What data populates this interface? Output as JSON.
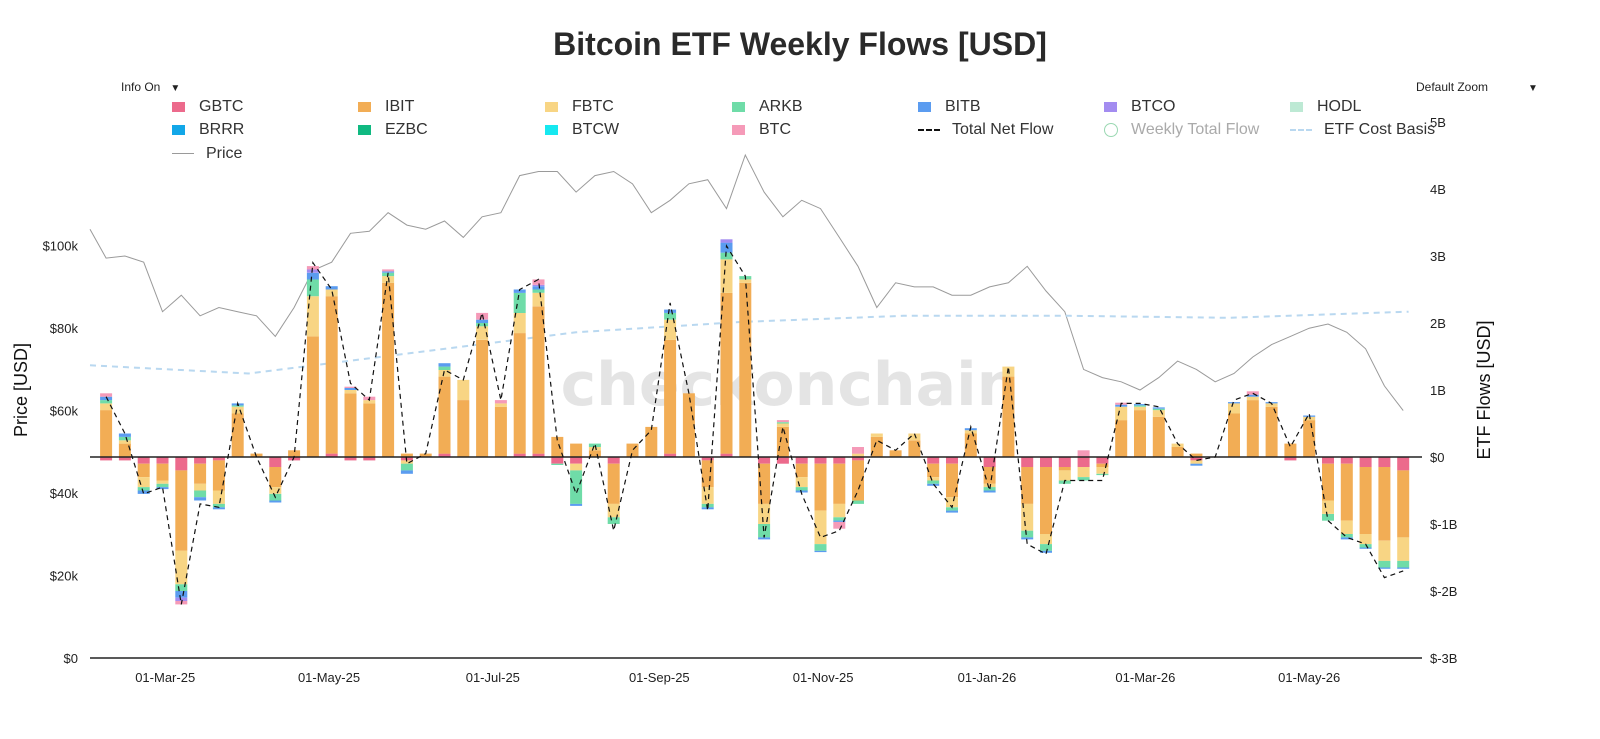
{
  "title": "Bitcoin ETF Weekly Flows [USD]",
  "controls": {
    "info": "Info On",
    "zoom": "Default Zoom"
  },
  "watermark": "checkonchain",
  "legend": [
    {
      "name": "GBTC",
      "color": "#ec6a8c",
      "kind": "bar"
    },
    {
      "name": "IBIT",
      "color": "#f2ad55",
      "kind": "bar"
    },
    {
      "name": "FBTC",
      "color": "#f8d584",
      "kind": "bar"
    },
    {
      "name": "ARKB",
      "color": "#6fdca8",
      "kind": "bar"
    },
    {
      "name": "BITB",
      "color": "#5b9cf0",
      "kind": "bar"
    },
    {
      "name": "BTCO",
      "color": "#a38cf0",
      "kind": "bar"
    },
    {
      "name": "HODL",
      "color": "#bde9d4",
      "kind": "bar"
    },
    {
      "name": "BRRR",
      "color": "#12a7e8",
      "kind": "bar"
    },
    {
      "name": "EZBC",
      "color": "#10b981",
      "kind": "bar"
    },
    {
      "name": "BTCW",
      "color": "#16e8f0",
      "kind": "bar"
    },
    {
      "name": "BTC",
      "color": "#f59ab8",
      "kind": "bar"
    },
    {
      "name": "Total Net Flow",
      "color": "#111111",
      "kind": "dash"
    },
    {
      "name": "Weekly Total Flow",
      "color": "#9ad8b2",
      "kind": "circle",
      "dim": true
    },
    {
      "name": "ETF Cost Basis",
      "color": "#b9d8f0",
      "kind": "lightdash"
    },
    {
      "name": "Price",
      "color": "#9a9a9a",
      "kind": "line"
    }
  ],
  "chart_data": {
    "type": "bar",
    "stacked": true,
    "title": "Bitcoin ETF Weekly Flows [USD]",
    "y_left": {
      "label": "Price [USD]",
      "range": [
        0,
        130000
      ],
      "ticks": [
        "$0",
        "$20k",
        "$40k",
        "$60k",
        "$80k",
        "$100k"
      ]
    },
    "y_right": {
      "label": "ETF Flows [USD]",
      "range": [
        -3,
        5
      ],
      "unit": "B",
      "ticks": [
        "$-3B",
        "$-2B",
        "$-1B",
        "$0",
        "1B",
        "2B",
        "3B",
        "4B",
        "5B"
      ]
    },
    "x_ticks": [
      "01-Mar-25",
      "01-May-25",
      "01-Jul-25",
      "01-Sep-25",
      "01-Nov-25",
      "01-Jan-26",
      "01-Mar-26",
      "01-May-26"
    ],
    "weeks": [
      "2025-02-07",
      "2025-02-14",
      "2025-02-21",
      "2025-02-28",
      "2025-03-07",
      "2025-03-14",
      "2025-03-21",
      "2025-03-28",
      "2025-04-04",
      "2025-04-11",
      "2025-04-18",
      "2025-04-25",
      "2025-05-02",
      "2025-05-09",
      "2025-05-16",
      "2025-05-23",
      "2025-05-30",
      "2025-06-06",
      "2025-06-13",
      "2025-06-20",
      "2025-06-27",
      "2025-07-04",
      "2025-07-11",
      "2025-07-18",
      "2025-07-25",
      "2025-08-01",
      "2025-08-08",
      "2025-08-15",
      "2025-08-22",
      "2025-08-29",
      "2025-09-05",
      "2025-09-12",
      "2025-09-19",
      "2025-09-26",
      "2025-10-03",
      "2025-10-10",
      "2025-10-17",
      "2025-10-24",
      "2025-10-31",
      "2025-11-07",
      "2025-11-14",
      "2025-11-21",
      "2025-11-28",
      "2025-12-05",
      "2025-12-12",
      "2025-12-19",
      "2025-12-26",
      "2026-01-02",
      "2026-01-09",
      "2026-01-16",
      "2026-01-23",
      "2026-01-30",
      "2026-02-06",
      "2026-02-13",
      "2026-02-20",
      "2026-02-27",
      "2026-03-06",
      "2026-03-13",
      "2026-03-20",
      "2026-03-27",
      "2026-04-03",
      "2026-04-10",
      "2026-04-17",
      "2026-04-24",
      "2026-05-01",
      "2026-05-08",
      "2026-05-15",
      "2026-05-22",
      "2026-05-29",
      "2026-06-05"
    ],
    "net_flow_B": [
      0.9,
      0.35,
      -0.55,
      -0.45,
      -2.2,
      -0.7,
      -0.75,
      0.8,
      0,
      -0.6,
      0,
      2.9,
      2.5,
      1.1,
      0.85,
      2.75,
      -0.1,
      0.05,
      1.3,
      1.15,
      2.15,
      0.85,
      2.5,
      2.65,
      0.25,
      -0.55,
      0.2,
      -1.1,
      0.1,
      0.4,
      2.3,
      0.95,
      -0.8,
      3.15,
      2.7,
      -1.2,
      0.45,
      -0.55,
      -1.2,
      -1.1,
      -0.5,
      0.25,
      0.1,
      0.35,
      -0.4,
      -0.75,
      0.45,
      -0.5,
      1.35,
      -1.3,
      -1.45,
      -0.35,
      -0.35,
      -0.35,
      0.8,
      0.8,
      0.75,
      0.2,
      -0.05,
      0,
      0.85,
      0.95,
      0.8,
      0.15,
      0.65,
      -0.95,
      -1.2,
      -1.3,
      -1.8,
      -1.7
    ],
    "series": [
      {
        "name": "GBTC",
        "values": [
          -0.05,
          -0.05,
          -0.1,
          -0.1,
          -0.2,
          -0.1,
          -0.05,
          0,
          0,
          -0.15,
          -0.05,
          0,
          0.05,
          -0.05,
          -0.05,
          0,
          -0.05,
          0,
          0.05,
          0,
          0,
          0,
          0.05,
          0.05,
          -0.1,
          -0.1,
          0,
          -0.1,
          0,
          0,
          0.05,
          0,
          -0.05,
          0.05,
          0,
          -0.1,
          -0.1,
          -0.1,
          -0.1,
          -0.1,
          -0.05,
          0,
          0,
          0,
          -0.1,
          -0.1,
          0,
          -0.15,
          0,
          -0.15,
          -0.15,
          -0.15,
          -0.15,
          -0.1,
          0,
          0,
          0,
          0,
          -0.05,
          0,
          0,
          0,
          0,
          -0.05,
          0,
          -0.1,
          -0.1,
          -0.15,
          -0.15,
          -0.2
        ]
      },
      {
        "name": "IBIT",
        "values": [
          0.7,
          0.2,
          -0.2,
          -0.25,
          -1.2,
          -0.3,
          -0.45,
          0.65,
          0.05,
          -0.3,
          0.1,
          1.8,
          2.35,
          0.95,
          0.8,
          2.6,
          0.05,
          0.05,
          1.15,
          0.85,
          1.75,
          0.75,
          1.8,
          2.2,
          0.3,
          0.2,
          0.1,
          -0.6,
          0.2,
          0.45,
          1.7,
          0.95,
          -0.4,
          2.4,
          2.6,
          -0.6,
          0.45,
          -0.2,
          -0.7,
          -0.6,
          -0.6,
          0.3,
          0.1,
          0.25,
          -0.2,
          -0.5,
          0.35,
          -0.25,
          1.2,
          -0.55,
          -1.0,
          -0.05,
          0,
          -0.05,
          0.55,
          0.7,
          0.6,
          0.15,
          0.05,
          0,
          0.65,
          0.85,
          0.75,
          0.2,
          0.55,
          -0.55,
          -0.85,
          -1.0,
          -1.1,
          -1.0
        ]
      },
      {
        "name": "FBTC",
        "values": [
          0.1,
          0.05,
          -0.15,
          -0.05,
          -0.5,
          -0.1,
          -0.2,
          0.1,
          0,
          -0.1,
          0,
          0.6,
          0.1,
          0.05,
          0.05,
          0.1,
          -0.05,
          0,
          0.1,
          0.3,
          0.2,
          0.05,
          0.3,
          0.2,
          0,
          -0.1,
          0.05,
          -0.2,
          0,
          0,
          0.3,
          0,
          -0.25,
          0.5,
          0.05,
          -0.3,
          0.05,
          -0.15,
          -0.5,
          -0.2,
          0.05,
          0.05,
          0,
          0.1,
          -0.05,
          -0.15,
          0.05,
          -0.05,
          0.15,
          -0.4,
          -0.15,
          -0.15,
          -0.15,
          -0.1,
          0.2,
          0.05,
          0.1,
          0.05,
          -0.05,
          0,
          0.15,
          0.05,
          0.05,
          0,
          0.05,
          -0.2,
          -0.2,
          -0.15,
          -0.3,
          -0.35
        ]
      },
      {
        "name": "ARKB",
        "values": [
          0.05,
          0.05,
          -0.05,
          -0.05,
          -0.1,
          -0.1,
          -0.05,
          0.02,
          0,
          -0.1,
          0,
          0.25,
          0,
          0,
          0,
          0.05,
          -0.1,
          0,
          0.05,
          0,
          0.05,
          0,
          0.3,
          0.05,
          -0.02,
          -0.5,
          0.05,
          -0.1,
          0,
          0,
          0.1,
          0,
          -0.05,
          0.1,
          0.05,
          -0.2,
          0.02,
          -0.05,
          -0.1,
          -0.05,
          -0.05,
          0,
          0,
          0,
          -0.05,
          -0.05,
          0,
          -0.05,
          0,
          -0.1,
          -0.1,
          -0.05,
          -0.05,
          -0.02,
          0,
          0.02,
          0.02,
          0,
          0,
          0,
          0,
          0,
          0,
          0,
          0,
          -0.1,
          -0.05,
          -0.05,
          -0.1,
          -0.1
        ]
      },
      {
        "name": "BITB",
        "values": [
          0.05,
          0.05,
          -0.05,
          -0.03,
          -0.1,
          -0.05,
          -0.03,
          0.03,
          0,
          -0.03,
          0,
          0.1,
          0.05,
          0.03,
          0,
          0.02,
          -0.05,
          0,
          0.05,
          0,
          0.05,
          0,
          0.05,
          0.05,
          0,
          -0.03,
          0,
          0,
          0,
          0,
          0.05,
          0,
          -0.03,
          0.15,
          0,
          -0.03,
          0,
          -0.03,
          -0.02,
          -0.02,
          0,
          0,
          0,
          0,
          -0.03,
          -0.03,
          0.03,
          -0.03,
          0,
          -0.03,
          -0.03,
          0,
          0,
          0,
          0.03,
          0.02,
          0.02,
          0,
          -0.03,
          0,
          0.02,
          0.03,
          0.02,
          0,
          0.02,
          0,
          -0.03,
          -0.02,
          -0.02,
          -0.02
        ]
      },
      {
        "name": "BTCO",
        "values": [
          0,
          0,
          0,
          0,
          -0.05,
          0,
          0,
          0,
          0,
          0,
          0,
          0.05,
          0,
          0,
          0,
          0,
          0,
          0,
          0,
          0,
          0,
          0,
          0,
          0.02,
          0,
          0,
          0,
          0,
          0,
          0,
          0,
          0,
          0,
          0.05,
          0,
          0,
          0,
          0,
          0,
          0,
          0,
          0,
          0,
          0,
          0,
          0,
          0,
          0,
          0,
          0,
          0,
          0,
          0,
          0,
          0,
          0,
          0,
          0,
          0,
          0,
          0,
          0,
          0,
          0,
          0,
          0,
          0,
          0,
          0,
          0
        ]
      },
      {
        "name": "BTC",
        "values": [
          0.05,
          0,
          0,
          0,
          -0.05,
          0,
          0,
          0,
          0,
          0,
          0,
          0.05,
          0,
          0.02,
          0.05,
          0.03,
          0,
          0,
          0,
          0,
          0.1,
          0.05,
          0,
          0.08,
          0,
          0,
          0,
          0,
          0,
          0,
          0,
          0,
          0,
          0,
          0,
          0,
          0.03,
          0,
          0,
          -0.1,
          0.1,
          0,
          0,
          0,
          0,
          0,
          0,
          0,
          0,
          0,
          0,
          0,
          0.1,
          0,
          0.03,
          0,
          0,
          0,
          0,
          0,
          0,
          0.05,
          0,
          0,
          0,
          0,
          0,
          0,
          0,
          0
        ]
      }
    ],
    "price": [
      {
        "date": "2025-02-01",
        "v": 104000
      },
      {
        "date": "2025-02-07",
        "v": 97000
      },
      {
        "date": "2025-02-14",
        "v": 97500
      },
      {
        "date": "2025-02-21",
        "v": 96000
      },
      {
        "date": "2025-02-28",
        "v": 84000
      },
      {
        "date": "2025-03-07",
        "v": 88000
      },
      {
        "date": "2025-03-14",
        "v": 83000
      },
      {
        "date": "2025-03-21",
        "v": 85000
      },
      {
        "date": "2025-03-28",
        "v": 84000
      },
      {
        "date": "2025-04-04",
        "v": 83000
      },
      {
        "date": "2025-04-11",
        "v": 78000
      },
      {
        "date": "2025-04-18",
        "v": 85000
      },
      {
        "date": "2025-04-25",
        "v": 94000
      },
      {
        "date": "2025-05-02",
        "v": 96000
      },
      {
        "date": "2025-05-09",
        "v": 103000
      },
      {
        "date": "2025-05-16",
        "v": 103500
      },
      {
        "date": "2025-05-23",
        "v": 108000
      },
      {
        "date": "2025-05-30",
        "v": 105000
      },
      {
        "date": "2025-06-06",
        "v": 104000
      },
      {
        "date": "2025-06-13",
        "v": 106000
      },
      {
        "date": "2025-06-20",
        "v": 102000
      },
      {
        "date": "2025-06-27",
        "v": 107000
      },
      {
        "date": "2025-07-04",
        "v": 108000
      },
      {
        "date": "2025-07-11",
        "v": 117000
      },
      {
        "date": "2025-07-18",
        "v": 118000
      },
      {
        "date": "2025-07-25",
        "v": 118000
      },
      {
        "date": "2025-08-01",
        "v": 113000
      },
      {
        "date": "2025-08-08",
        "v": 117000
      },
      {
        "date": "2025-08-15",
        "v": 118000
      },
      {
        "date": "2025-08-22",
        "v": 115000
      },
      {
        "date": "2025-08-29",
        "v": 108000
      },
      {
        "date": "2025-09-05",
        "v": 111000
      },
      {
        "date": "2025-09-12",
        "v": 115000
      },
      {
        "date": "2025-09-19",
        "v": 116000
      },
      {
        "date": "2025-09-26",
        "v": 109000
      },
      {
        "date": "2025-10-03",
        "v": 122000
      },
      {
        "date": "2025-10-10",
        "v": 113000
      },
      {
        "date": "2025-10-17",
        "v": 107000
      },
      {
        "date": "2025-10-24",
        "v": 111000
      },
      {
        "date": "2025-10-31",
        "v": 109000
      },
      {
        "date": "2025-11-07",
        "v": 102000
      },
      {
        "date": "2025-11-14",
        "v": 95000
      },
      {
        "date": "2025-11-21",
        "v": 85000
      },
      {
        "date": "2025-11-28",
        "v": 91000
      },
      {
        "date": "2025-12-05",
        "v": 90000
      },
      {
        "date": "2025-12-12",
        "v": 90000
      },
      {
        "date": "2025-12-19",
        "v": 88000
      },
      {
        "date": "2025-12-26",
        "v": 88000
      },
      {
        "date": "2026-01-02",
        "v": 90000
      },
      {
        "date": "2026-01-09",
        "v": 91000
      },
      {
        "date": "2026-01-16",
        "v": 95000
      },
      {
        "date": "2026-01-23",
        "v": 89000
      },
      {
        "date": "2026-01-30",
        "v": 84000
      },
      {
        "date": "2026-02-06",
        "v": 70000
      },
      {
        "date": "2026-02-13",
        "v": 68000
      },
      {
        "date": "2026-02-20",
        "v": 67000
      },
      {
        "date": "2026-02-27",
        "v": 65000
      },
      {
        "date": "2026-03-06",
        "v": 68000
      },
      {
        "date": "2026-03-13",
        "v": 72000
      },
      {
        "date": "2026-03-20",
        "v": 70000
      },
      {
        "date": "2026-03-27",
        "v": 67000
      },
      {
        "date": "2026-04-03",
        "v": 69000
      },
      {
        "date": "2026-04-10",
        "v": 73000
      },
      {
        "date": "2026-04-17",
        "v": 76000
      },
      {
        "date": "2026-04-24",
        "v": 78000
      },
      {
        "date": "2026-05-01",
        "v": 80000
      },
      {
        "date": "2026-05-08",
        "v": 81000
      },
      {
        "date": "2026-05-15",
        "v": 79000
      },
      {
        "date": "2026-05-22",
        "v": 75000
      },
      {
        "date": "2026-05-29",
        "v": 66000
      },
      {
        "date": "2026-06-05",
        "v": 60000
      }
    ],
    "etf_cost_basis": [
      {
        "date": "2025-02-01",
        "v": 71000
      },
      {
        "date": "2025-04-01",
        "v": 69000
      },
      {
        "date": "2025-06-01",
        "v": 74000
      },
      {
        "date": "2025-08-01",
        "v": 79000
      },
      {
        "date": "2025-10-01",
        "v": 81500
      },
      {
        "date": "2025-12-01",
        "v": 83000
      },
      {
        "date": "2026-02-01",
        "v": 83000
      },
      {
        "date": "2026-04-01",
        "v": 82500
      },
      {
        "date": "2026-06-07",
        "v": 84000
      }
    ],
    "x_range": [
      "2025-02-01",
      "2026-06-12"
    ],
    "legend_position": "top"
  }
}
